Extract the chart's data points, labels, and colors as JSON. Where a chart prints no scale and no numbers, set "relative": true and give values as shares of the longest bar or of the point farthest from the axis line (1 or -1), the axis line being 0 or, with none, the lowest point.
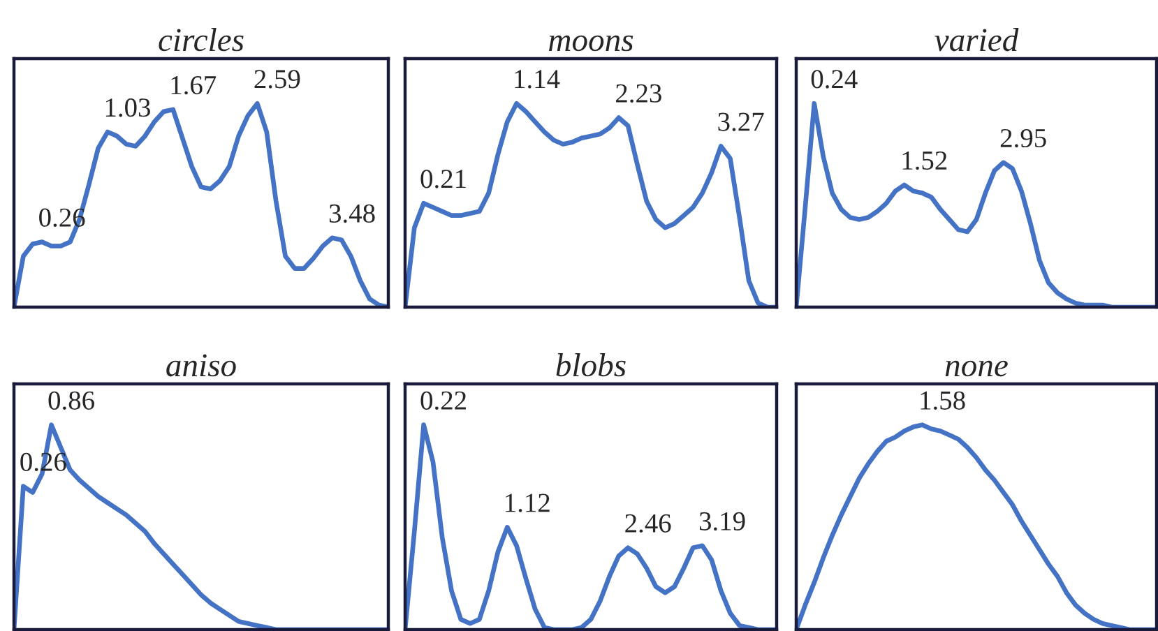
{
  "chart_data": [
    {
      "type": "line",
      "title": "circles",
      "relative": true,
      "categories": [
        null,
        null,
        null,
        null,
        null,
        null,
        null,
        null,
        null,
        null,
        null,
        null,
        null,
        null,
        null,
        null,
        null,
        null,
        null,
        null,
        null,
        null,
        null,
        null,
        null,
        null,
        null,
        null,
        null,
        null,
        null,
        null,
        null,
        null,
        null,
        null,
        null,
        null,
        null,
        null,
        null
      ],
      "series": [
        {
          "color": "#4472c4",
          "values": [
            0,
            0.25,
            0.31,
            0.32,
            0.3,
            0.3,
            0.32,
            0.43,
            0.6,
            0.78,
            0.86,
            0.84,
            0.8,
            0.79,
            0.84,
            0.91,
            0.96,
            0.97,
            0.83,
            0.69,
            0.59,
            0.58,
            0.62,
            0.69,
            0.84,
            0.94,
            1.0,
            0.86,
            0.52,
            0.25,
            0.19,
            0.19,
            0.24,
            0.3,
            0.34,
            0.33,
            0.25,
            0.13,
            0.04,
            0.01,
            0
          ]
        }
      ],
      "annotations": [
        "0.26",
        "1.03",
        "1.67",
        "2.59",
        "3.48"
      ]
    },
    {
      "type": "line",
      "title": "moons",
      "relative": true,
      "categories": [
        null,
        null,
        null,
        null,
        null,
        null,
        null,
        null,
        null,
        null,
        null,
        null,
        null,
        null,
        null,
        null,
        null,
        null,
        null,
        null,
        null,
        null,
        null,
        null,
        null,
        null,
        null,
        null,
        null,
        null,
        null,
        null,
        null,
        null,
        null,
        null,
        null,
        null,
        null,
        null,
        null
      ],
      "series": [
        {
          "color": "#4472c4",
          "values": [
            0,
            0.39,
            0.51,
            0.49,
            0.47,
            0.45,
            0.45,
            0.46,
            0.47,
            0.56,
            0.75,
            0.91,
            1.0,
            0.96,
            0.91,
            0.86,
            0.82,
            0.8,
            0.81,
            0.83,
            0.84,
            0.85,
            0.88,
            0.93,
            0.89,
            0.7,
            0.52,
            0.43,
            0.39,
            0.41,
            0.45,
            0.49,
            0.56,
            0.66,
            0.79,
            0.73,
            0.44,
            0.13,
            0.02,
            0,
            0
          ]
        }
      ],
      "annotations": [
        "0.21",
        "1.14",
        "2.23",
        "3.27"
      ]
    },
    {
      "type": "line",
      "title": "varied",
      "relative": true,
      "categories": [
        null,
        null,
        null,
        null,
        null,
        null,
        null,
        null,
        null,
        null,
        null,
        null,
        null,
        null,
        null,
        null,
        null,
        null,
        null,
        null,
        null,
        null,
        null,
        null,
        null,
        null,
        null,
        null,
        null,
        null,
        null,
        null,
        null,
        null,
        null,
        null,
        null,
        null,
        null,
        null,
        null
      ],
      "series": [
        {
          "color": "#4472c4",
          "values": [
            0,
            0.49,
            1.0,
            0.74,
            0.56,
            0.48,
            0.44,
            0.43,
            0.44,
            0.47,
            0.51,
            0.57,
            0.6,
            0.57,
            0.56,
            0.54,
            0.48,
            0.43,
            0.38,
            0.37,
            0.43,
            0.56,
            0.67,
            0.71,
            0.68,
            0.57,
            0.41,
            0.23,
            0.12,
            0.07,
            0.04,
            0.02,
            0.01,
            0.01,
            0.01,
            0,
            0,
            0,
            0,
            0,
            0
          ]
        }
      ],
      "annotations": [
        "0.24",
        "1.52",
        "2.95"
      ]
    },
    {
      "type": "line",
      "title": "aniso",
      "relative": true,
      "categories": [
        null,
        null,
        null,
        null,
        null,
        null,
        null,
        null,
        null,
        null,
        null,
        null,
        null,
        null,
        null,
        null,
        null,
        null,
        null,
        null,
        null,
        null,
        null,
        null,
        null,
        null,
        null,
        null,
        null,
        null,
        null,
        null,
        null,
        null,
        null,
        null,
        null,
        null,
        null,
        null,
        null
      ],
      "series": [
        {
          "color": "#4472c4",
          "values": [
            0,
            0.7,
            0.67,
            0.76,
            1.0,
            0.89,
            0.78,
            0.73,
            0.69,
            0.65,
            0.62,
            0.59,
            0.56,
            0.52,
            0.48,
            0.42,
            0.37,
            0.32,
            0.27,
            0.22,
            0.17,
            0.13,
            0.1,
            0.07,
            0.04,
            0.03,
            0.02,
            0.01,
            0,
            0,
            0,
            0,
            0,
            0,
            0,
            0,
            0,
            0,
            0,
            0,
            0
          ]
        }
      ],
      "annotations": [
        "0.26",
        "0.86"
      ]
    },
    {
      "type": "line",
      "title": "blobs",
      "relative": true,
      "categories": [
        null,
        null,
        null,
        null,
        null,
        null,
        null,
        null,
        null,
        null,
        null,
        null,
        null,
        null,
        null,
        null,
        null,
        null,
        null,
        null,
        null,
        null,
        null,
        null,
        null,
        null,
        null,
        null,
        null,
        null,
        null,
        null,
        null,
        null,
        null,
        null,
        null,
        null,
        null,
        null,
        null
      ],
      "series": [
        {
          "color": "#4472c4",
          "values": [
            0,
            0.48,
            1.0,
            0.82,
            0.45,
            0.19,
            0.05,
            0.03,
            0.05,
            0.19,
            0.38,
            0.5,
            0.41,
            0.25,
            0.1,
            0.01,
            0,
            0,
            0,
            0.01,
            0.05,
            0.14,
            0.26,
            0.36,
            0.4,
            0.37,
            0.3,
            0.21,
            0.18,
            0.21,
            0.3,
            0.4,
            0.41,
            0.34,
            0.19,
            0.08,
            0.02,
            0.01,
            0,
            0,
            0
          ]
        }
      ],
      "annotations": [
        "0.22",
        "1.12",
        "2.46",
        "3.19"
      ]
    },
    {
      "type": "line",
      "title": "none",
      "relative": true,
      "categories": [
        null,
        null,
        null,
        null,
        null,
        null,
        null,
        null,
        null,
        null,
        null,
        null,
        null,
        null,
        null,
        null,
        null,
        null,
        null,
        null,
        null,
        null,
        null,
        null,
        null,
        null,
        null,
        null,
        null,
        null,
        null,
        null,
        null,
        null,
        null,
        null,
        null,
        null,
        null,
        null,
        null
      ],
      "series": [
        {
          "color": "#4472c4",
          "values": [
            0,
            0.12,
            0.23,
            0.35,
            0.46,
            0.56,
            0.65,
            0.74,
            0.81,
            0.87,
            0.92,
            0.94,
            0.97,
            0.99,
            1.0,
            0.98,
            0.97,
            0.95,
            0.93,
            0.89,
            0.84,
            0.78,
            0.73,
            0.67,
            0.61,
            0.53,
            0.46,
            0.39,
            0.32,
            0.26,
            0.18,
            0.12,
            0.08,
            0.05,
            0.03,
            0.02,
            0.01,
            0,
            0,
            0,
            0
          ]
        }
      ],
      "annotations": [
        "1.58"
      ]
    }
  ]
}
